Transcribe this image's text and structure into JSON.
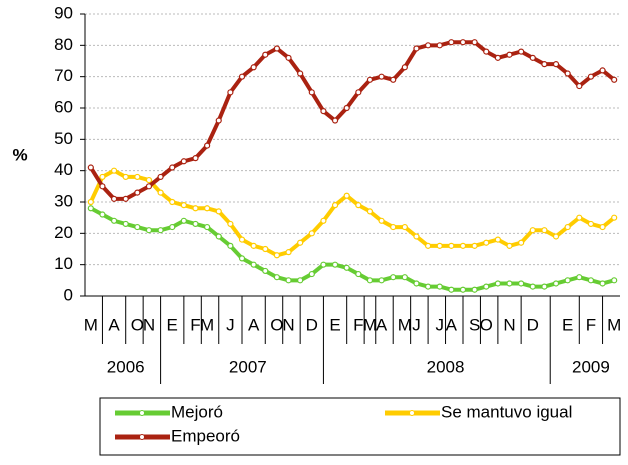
{
  "chart_data": {
    "type": "line",
    "y_label": "%",
    "categories": [
      "M",
      null,
      "A",
      null,
      "O",
      "N",
      null,
      "E",
      null,
      "F",
      "M",
      null,
      "J",
      null,
      "A",
      null,
      "O",
      "N",
      null,
      "D",
      null,
      "E",
      null,
      "F",
      "M",
      "A",
      null,
      "M",
      "J",
      null,
      "J",
      "A",
      null,
      "S",
      "O",
      null,
      "N",
      null,
      "D",
      null,
      null,
      "E",
      null,
      "F",
      null,
      "M"
    ],
    "years": [
      "2006",
      "2007",
      "2008",
      "2009"
    ],
    "series": [
      {
        "name": "Mejoró",
        "color": "#66cc33",
        "values": [
          28,
          26,
          24,
          23,
          22,
          21,
          21,
          22,
          24,
          23,
          22,
          19,
          16,
          12,
          10,
          8,
          6,
          5,
          5,
          7,
          10,
          10,
          9,
          7,
          5,
          5,
          6,
          6,
          4,
          3,
          3,
          2,
          2,
          2,
          3,
          4,
          4,
          4,
          3,
          3,
          4,
          5,
          6,
          5,
          4,
          5
        ]
      },
      {
        "name": "Se mantuvo igual",
        "color": "#ffcc00",
        "values": [
          30,
          38,
          40,
          38,
          38,
          37,
          33,
          30,
          29,
          28,
          28,
          27,
          23,
          18,
          16,
          15,
          13,
          14,
          17,
          20,
          24,
          29,
          32,
          29,
          27,
          24,
          22,
          22,
          19,
          16,
          16,
          16,
          16,
          16,
          17,
          18,
          16,
          17,
          21,
          21,
          19,
          22,
          25,
          23,
          22,
          25
        ]
      },
      {
        "name": "Empeoró",
        "color": "#aa2211",
        "values": [
          41,
          35,
          31,
          31,
          33,
          35,
          38,
          41,
          43,
          44,
          48,
          56,
          65,
          70,
          73,
          77,
          79,
          76,
          71,
          65,
          59,
          56,
          60,
          65,
          69,
          70,
          69,
          73,
          79,
          80,
          80,
          81,
          81,
          81,
          78,
          76,
          77,
          78,
          76,
          74,
          74,
          71,
          67,
          70,
          72,
          69
        ]
      }
    ],
    "ylim": [
      0,
      90
    ],
    "yticks": [
      0,
      10,
      20,
      30,
      40,
      50,
      60,
      70,
      80,
      90
    ],
    "grid": true,
    "legend": "bottom"
  }
}
